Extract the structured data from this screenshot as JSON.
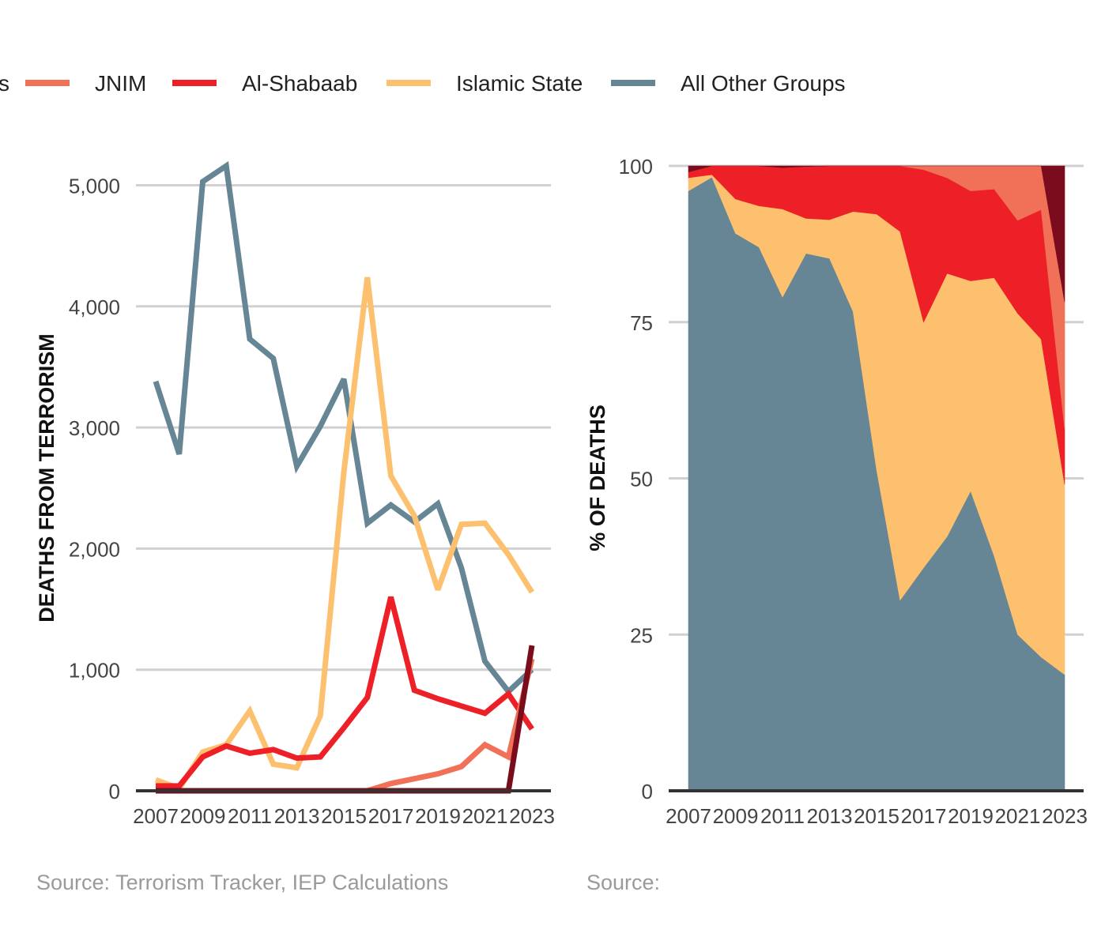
{
  "colors": {
    "Lakurawa": "#7a0c1e",
    "JNIM": "#f07157",
    "Al-Shabaab": "#ee2027",
    "Islamic State": "#fcc06e",
    "All Other Groups": "#668595",
    "grid": "#d0d0d0",
    "axis": "#333333"
  },
  "legend": [
    {
      "name": "Lakurawa",
      "label": "s",
      "color": "#7a0c1e"
    },
    {
      "name": "JNIM",
      "label": "JNIM",
      "color": "#f07157"
    },
    {
      "name": "Al-Shabaab",
      "label": "Al-Shabaab",
      "color": "#ee2027"
    },
    {
      "name": "Islamic State",
      "label": "Islamic State",
      "color": "#fcc06e"
    },
    {
      "name": "All Other Groups",
      "label": "All Other Groups",
      "color": "#668595"
    }
  ],
  "sources": {
    "left": "Source: Terrorism Tracker, IEP Calculations",
    "right": "Source:"
  },
  "chart_data": [
    {
      "type": "line",
      "title": "",
      "xlabel": "",
      "ylabel": "DEATHS FROM TERRORISM",
      "ylim": [
        0,
        5200
      ],
      "yticks": [
        0,
        1000,
        2000,
        3000,
        4000,
        5000
      ],
      "ytick_labels": [
        "0",
        "1,000",
        "2,000",
        "3,000",
        "4,000",
        "5,000"
      ],
      "xtick_labels": [
        "2007",
        "2009",
        "2011",
        "2013",
        "2015",
        "2017",
        "2019",
        "2021",
        "2023"
      ],
      "grid": true,
      "x": [
        2007,
        2008,
        2009,
        2010,
        2011,
        2012,
        2013,
        2014,
        2015,
        2016,
        2017,
        2018,
        2019,
        2020,
        2021,
        2022,
        2023
      ],
      "series": [
        {
          "name": "All Other Groups",
          "values": [
            3380,
            2780,
            5030,
            5160,
            3730,
            3570,
            2680,
            3010,
            3400,
            2210,
            2360,
            2220,
            2370,
            1840,
            1070,
            820,
            1000
          ]
        },
        {
          "name": "Islamic State",
          "values": [
            90,
            20,
            320,
            380,
            660,
            220,
            190,
            620,
            2630,
            4240,
            2600,
            2270,
            1660,
            2200,
            2210,
            1950,
            1640
          ]
        },
        {
          "name": "Al-Shabaab",
          "values": [
            40,
            40,
            280,
            370,
            310,
            340,
            270,
            280,
            520,
            770,
            1600,
            830,
            760,
            700,
            640,
            800,
            510
          ]
        },
        {
          "name": "JNIM",
          "values": [
            0,
            0,
            0,
            0,
            0,
            0,
            0,
            0,
            0,
            0,
            60,
            100,
            140,
            200,
            380,
            280,
            1090
          ]
        },
        {
          "name": "Lakurawa",
          "values": [
            0,
            0,
            0,
            0,
            0,
            0,
            0,
            0,
            0,
            0,
            0,
            0,
            0,
            0,
            0,
            0,
            1200
          ]
        }
      ]
    },
    {
      "type": "area",
      "stacked": true,
      "title": "",
      "xlabel": "",
      "ylabel": "% OF DEATHS",
      "ylim": [
        0,
        100
      ],
      "yticks": [
        0,
        25,
        50,
        75,
        100
      ],
      "ytick_labels": [
        "0",
        "25",
        "50",
        "75",
        "100"
      ],
      "xtick_labels": [
        "2007",
        "2009",
        "2011",
        "2013",
        "2015",
        "2017",
        "2019",
        "2021",
        "2023"
      ],
      "grid": true,
      "x": [
        2007,
        2008,
        2009,
        2010,
        2011,
        2012,
        2013,
        2014,
        2015,
        2016,
        2017,
        2018,
        2019,
        2020,
        2021,
        2022,
        2023
      ],
      "series": [
        {
          "name": "All Other Groups",
          "values": [
            96,
            98.2,
            89.2,
            87,
            79,
            86,
            85.2,
            76.7,
            51.4,
            30.5,
            35.7,
            40.7,
            48,
            37.6,
            25,
            21.4,
            18.6
          ]
        },
        {
          "name": "Islamic State",
          "values": [
            2.1,
            0.4,
            5.5,
            6.6,
            14.1,
            5.6,
            6.2,
            16,
            40.9,
            59,
            39.3,
            42.1,
            33.6,
            44.5,
            51.4,
            50.9,
            30.4
          ]
        },
        {
          "name": "Al-Shabaab",
          "values": [
            0.9,
            1.4,
            5.3,
            6.4,
            6.6,
            8.3,
            8.6,
            7.3,
            7.7,
            10.5,
            24.4,
            15.3,
            14.4,
            14.2,
            14.9,
            20.7,
            8.9
          ]
        },
        {
          "name": "JNIM",
          "values": [
            0,
            0,
            0,
            0,
            0,
            0,
            0,
            0,
            0,
            0,
            0.6,
            1.9,
            4,
            3.7,
            8.7,
            7,
            20.3
          ]
        },
        {
          "name": "Lakurawa",
          "values": [
            1,
            0,
            0,
            0,
            0.3,
            0.1,
            0,
            0,
            0,
            0,
            0,
            0,
            0,
            0,
            0,
            0,
            21.8
          ]
        }
      ]
    }
  ]
}
